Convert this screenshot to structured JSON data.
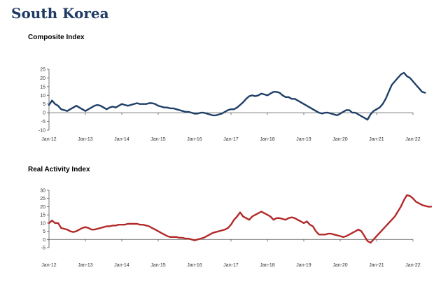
{
  "page": {
    "title": "South Korea"
  },
  "chart_data": [
    {
      "type": "line",
      "title": "Composite Index",
      "color": "#1f3f68",
      "ylim": [
        -10,
        25
      ],
      "yticks": [
        -10,
        -5,
        0,
        5,
        10,
        15,
        20,
        25
      ],
      "xticks": [
        "Jan-12",
        "Jan-13",
        "Jan-14",
        "Jan-15",
        "Jan-16",
        "Jan-17",
        "Jan-18",
        "Jan-19",
        "Jan-20",
        "Jan-21",
        "Jan-22"
      ],
      "grid": false,
      "x_start": "Jan-12",
      "x_step": "month",
      "values": [
        4.5,
        7,
        5,
        4,
        2,
        1.5,
        1,
        2,
        3,
        4,
        3,
        2,
        1,
        2,
        3,
        4,
        4.5,
        4,
        3,
        2,
        3,
        3.5,
        3,
        4,
        5,
        4.5,
        4,
        4.5,
        5,
        5.5,
        5,
        5,
        5,
        5.5,
        5.5,
        5,
        4,
        3.5,
        3,
        3,
        2.5,
        2.5,
        2,
        1.5,
        1,
        0.5,
        0.5,
        0,
        -0.5,
        -0.5,
        0,
        0,
        -0.5,
        -1,
        -1.5,
        -1.5,
        -1,
        -0.5,
        0.5,
        1.5,
        2,
        2,
        3,
        4.5,
        6,
        8,
        9.5,
        10,
        9.5,
        10,
        11,
        10.5,
        10,
        11,
        12,
        12,
        11.5,
        10,
        9,
        9,
        8,
        8,
        7,
        6,
        5,
        4,
        3,
        2,
        1,
        0,
        -0.5,
        0,
        0,
        -0.5,
        -1,
        -1.5,
        -0.5,
        0.5,
        1.5,
        1.5,
        0,
        0,
        -1,
        -2,
        -3,
        -4,
        -1,
        1,
        2,
        3,
        5,
        8,
        12,
        16,
        18,
        20,
        22,
        23,
        21,
        20,
        18,
        16,
        14,
        12,
        11.5
      ]
    },
    {
      "type": "line",
      "title": "Real Activity Index",
      "color": "#b22a2a",
      "ylim": [
        -5,
        30
      ],
      "yticks": [
        -5,
        0,
        5,
        10,
        15,
        20,
        25,
        30
      ],
      "xticks": [
        "Jan-12",
        "Jan-13",
        "Jan-14",
        "Jan-15",
        "Jan-16",
        "Jan-17",
        "Jan-18",
        "Jan-19",
        "Jan-20",
        "Jan-21",
        "Jan-22"
      ],
      "grid": false,
      "x_start": "Jan-12",
      "x_step": "month",
      "values": [
        10,
        11.5,
        10,
        10,
        7,
        6.5,
        6,
        5,
        4.5,
        5,
        6,
        7,
        7.5,
        7,
        6,
        6,
        6.5,
        7,
        7.5,
        8,
        8,
        8.5,
        8.5,
        9,
        9,
        9,
        9.5,
        9.5,
        9.5,
        9.5,
        9,
        9,
        8.5,
        8,
        7,
        6,
        5,
        4,
        3,
        2,
        1.5,
        1.5,
        1.5,
        1,
        1,
        0.5,
        0.5,
        0,
        -0.5,
        0,
        0.5,
        1,
        2,
        3,
        4,
        4.5,
        5,
        5.5,
        6,
        7,
        9,
        12,
        14,
        16.5,
        14,
        13,
        12,
        14,
        15,
        16,
        17,
        16,
        15,
        14,
        12,
        13,
        13,
        12.5,
        12,
        13,
        13.5,
        13,
        12,
        11,
        10,
        11,
        9,
        8,
        5,
        3,
        3,
        3,
        3.5,
        3.5,
        3,
        2.5,
        2,
        1.5,
        2,
        3,
        4,
        5,
        6,
        5,
        2,
        -1,
        -2,
        0,
        2,
        4,
        6,
        8,
        10,
        12,
        14,
        17,
        20,
        24,
        27,
        26.5,
        25,
        23,
        22,
        21,
        20.5,
        20,
        20
      ]
    }
  ]
}
